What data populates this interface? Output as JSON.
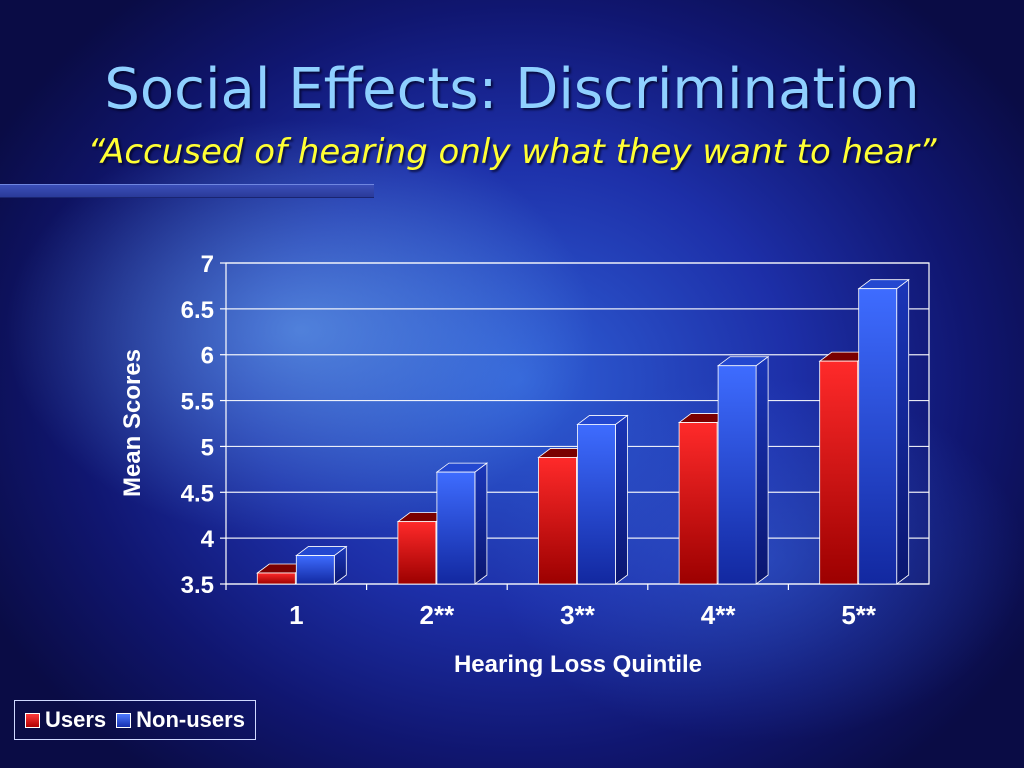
{
  "slide": {
    "title": "Social Effects: Discrimination",
    "subtitle": "“Accused of hearing only what they want to hear”"
  },
  "colors": {
    "users": "#e01818",
    "users_dark": "#8a0000",
    "nonusers": "#2a55e8",
    "nonusers_dark": "#10239a",
    "axis_text": "#ffffff",
    "gridline": "#ffffff"
  },
  "chart_data": {
    "type": "bar",
    "title": "",
    "xlabel": "Hearing Loss Quintile",
    "ylabel": "Mean Scores",
    "categories": [
      "1",
      "2**",
      "3**",
      "4**",
      "5**"
    ],
    "ylim": [
      3.5,
      7
    ],
    "yticks": [
      "7",
      "6.5",
      "6",
      "5.5",
      "5",
      "4.5",
      "4",
      "3.5"
    ],
    "grid": true,
    "legend_position": "bottom-left",
    "series": [
      {
        "name": "Users",
        "values": [
          3.62,
          4.18,
          4.88,
          5.26,
          5.93
        ]
      },
      {
        "name": "Non-users",
        "values": [
          3.81,
          4.72,
          5.24,
          5.88,
          6.72
        ]
      }
    ]
  }
}
